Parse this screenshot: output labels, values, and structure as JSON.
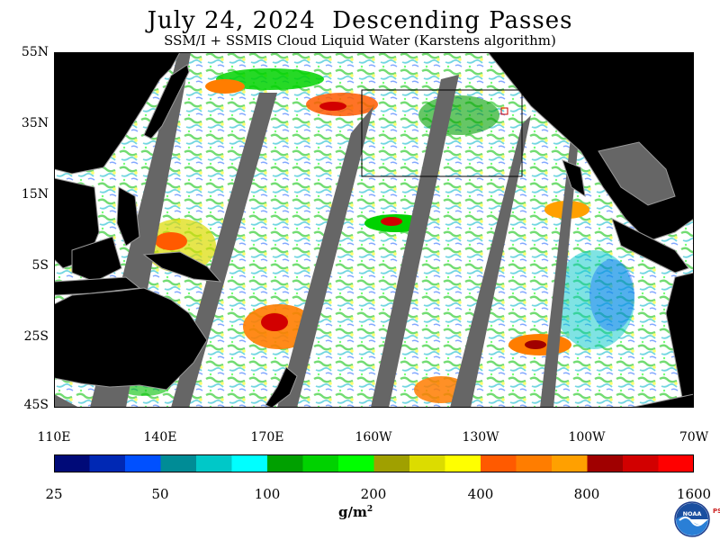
{
  "header": {
    "title": "July 24, 2024  Descending Passes",
    "subtitle": "SSM/I + SSMIS Cloud Liquid Water (Karstens algorithm)"
  },
  "map": {
    "region": "Pacific Ocean",
    "lat_ticks": [
      "55N",
      "35N",
      "15N",
      "5S",
      "25S",
      "45S"
    ],
    "lon_ticks": [
      "110E",
      "140E",
      "170E",
      "160W",
      "130W",
      "100W",
      "70W"
    ]
  },
  "colorbar": {
    "colors": [
      "#000a78",
      "#0028b4",
      "#0050ff",
      "#008c96",
      "#00c8c8",
      "#00ffff",
      "#00a000",
      "#00d200",
      "#00ff00",
      "#a0a000",
      "#dcdc00",
      "#ffff00",
      "#ff5a00",
      "#ff7d00",
      "#ffa000",
      "#a00000",
      "#d20000",
      "#ff0000"
    ],
    "labels": [
      "25",
      "50",
      "100",
      "200",
      "400",
      "800",
      "1600"
    ],
    "unit": "g/m",
    "unit_sup": "2"
  },
  "logo": {
    "text": "NOAA",
    "side_text": "PSL"
  }
}
